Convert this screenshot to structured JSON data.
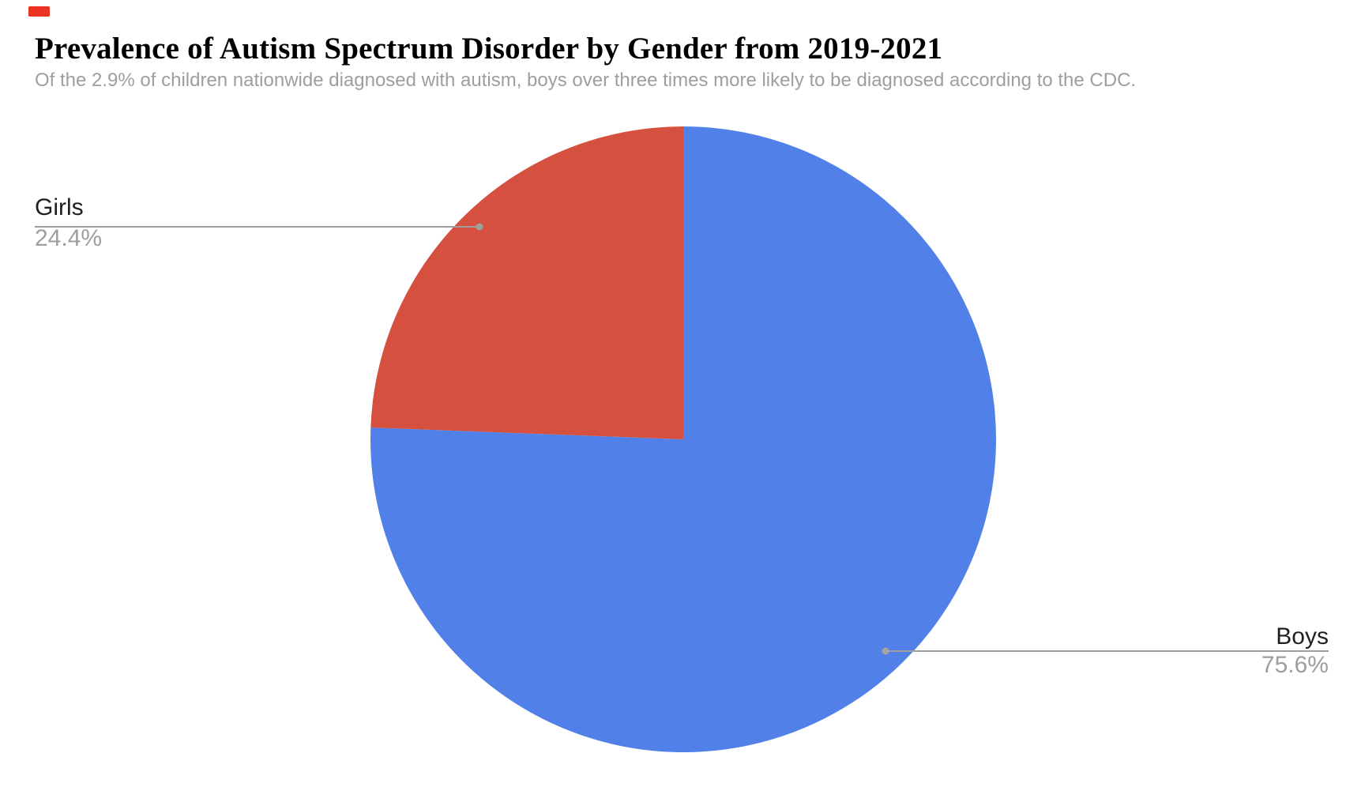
{
  "header": {
    "title": "Prevalence of Autism Spectrum Disorder by Gender from 2019-2021",
    "subtitle": "Of the 2.9% of children nationwide diagnosed with autism, boys over three times more likely to be diagnosed according to the CDC."
  },
  "chart_data": {
    "type": "pie",
    "title": "Prevalence of Autism Spectrum Disorder by Gender from 2019-2021",
    "subtitle": "Of the 2.9% of children nationwide diagnosed with autism, boys over three times more likely to be diagnosed according to the CDC.",
    "slices": [
      {
        "label": "Boys",
        "value": 75.6,
        "display": "75.6%",
        "color": "#5181E8"
      },
      {
        "label": "Girls",
        "value": 24.4,
        "display": "24.4%",
        "color": "#D5503E"
      }
    ],
    "start_angle_deg": 0,
    "direction": "clockwise",
    "legend": "none",
    "label_style": "outside-with-leader-lines"
  },
  "colors": {
    "background": "#FFFFFF",
    "title_text": "#000000",
    "subtitle_text": "#9E9E9E",
    "label_name_text": "#1F1F1F",
    "label_pct_text": "#9E9E9E",
    "leader_line": "#9E9E9E",
    "record_indicator": "#EB3323"
  }
}
